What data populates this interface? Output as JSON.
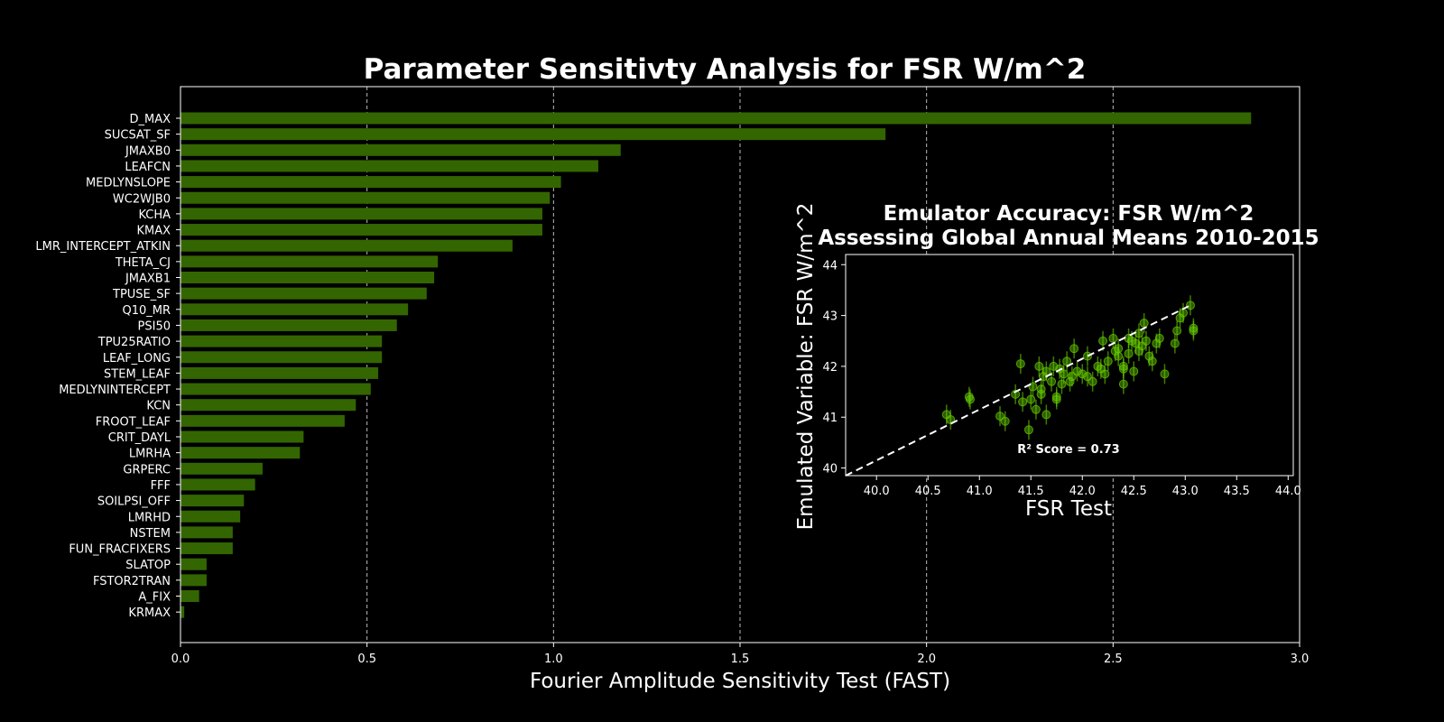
{
  "chart_data": [
    {
      "type": "bar",
      "orientation": "horizontal",
      "title": "Parameter Sensitivty Analysis for FSR W/m^2",
      "xlabel": "Fourier Amplitude Sensitivity Test (FAST)",
      "ylabel": "",
      "xlim": [
        0.0,
        3.0
      ],
      "xticks": [
        "0.0",
        "0.5",
        "1.0",
        "1.5",
        "2.0",
        "2.5",
        "3.0"
      ],
      "grid": "vertical dashed",
      "bar_color": "#336600",
      "categories": [
        "D_MAX",
        "SUCSAT_SF",
        "JMAXB0",
        "LEAFCN",
        "MEDLYNSLOPE",
        "WC2WJB0",
        "KCHA",
        "KMAX",
        "LMR_INTERCEPT_ATKIN",
        "THETA_CJ",
        "JMAXB1",
        "TPUSE_SF",
        "Q10_MR",
        "PSI50",
        "TPU25RATIO",
        "LEAF_LONG",
        "STEM_LEAF",
        "MEDLYNINTERCEPT",
        "KCN",
        "FROOT_LEAF",
        "CRIT_DAYL",
        "LMRHA",
        "GRPERC",
        "FFF",
        "SOILPSI_OFF",
        "LMRHD",
        "NSTEM",
        "FUN_FRACFIXERS",
        "SLATOP",
        "FSTOR2TRAN",
        "A_FIX",
        "KRMAX"
      ],
      "values": [
        2.87,
        1.89,
        1.18,
        1.12,
        1.02,
        0.99,
        0.97,
        0.97,
        0.89,
        0.69,
        0.68,
        0.66,
        0.61,
        0.58,
        0.54,
        0.54,
        0.53,
        0.51,
        0.47,
        0.44,
        0.33,
        0.32,
        0.22,
        0.2,
        0.17,
        0.16,
        0.14,
        0.14,
        0.07,
        0.07,
        0.05,
        0.01
      ]
    },
    {
      "type": "scatter",
      "title": "Emulator Accuracy: FSR W/m^2",
      "subtitle": "Assessing Global Annual Means 2010-2015",
      "xlabel": "FSR Test",
      "ylabel": "Emulated Variable: FSR W/m^2",
      "xlim": [
        39.7,
        44.05
      ],
      "ylim": [
        39.85,
        44.2
      ],
      "xticks": [
        "40.0",
        "40.5",
        "41.0",
        "41.5",
        "42.0",
        "42.5",
        "43.0",
        "43.5",
        "44.0"
      ],
      "yticks": [
        "40",
        "41",
        "42",
        "43",
        "44"
      ],
      "annotation": "R² Score = 0.73",
      "point_color": "#66cc00",
      "line": {
        "style": "dashed",
        "color": "#ffffff",
        "from": [
          39.7,
          39.85
        ],
        "to": [
          43.05,
          43.2
        ]
      },
      "points": [
        [
          40.68,
          41.05
        ],
        [
          40.72,
          40.95
        ],
        [
          40.9,
          41.4
        ],
        [
          40.91,
          41.35
        ],
        [
          41.2,
          41.02
        ],
        [
          41.25,
          40.92
        ],
        [
          41.35,
          41.45
        ],
        [
          41.4,
          42.05
        ],
        [
          41.42,
          41.3
        ],
        [
          41.48,
          40.75
        ],
        [
          41.5,
          41.35
        ],
        [
          41.52,
          41.6
        ],
        [
          41.55,
          41.15
        ],
        [
          41.58,
          42.0
        ],
        [
          41.6,
          41.55
        ],
        [
          41.6,
          41.45
        ],
        [
          41.62,
          41.8
        ],
        [
          41.65,
          41.05
        ],
        [
          41.65,
          41.9
        ],
        [
          41.7,
          41.7
        ],
        [
          41.72,
          42.0
        ],
        [
          41.75,
          41.4
        ],
        [
          41.75,
          41.35
        ],
        [
          41.78,
          41.95
        ],
        [
          41.8,
          41.65
        ],
        [
          41.82,
          41.85
        ],
        [
          41.85,
          42.1
        ],
        [
          41.88,
          41.7
        ],
        [
          41.9,
          41.8
        ],
        [
          41.92,
          42.35
        ],
        [
          41.95,
          41.9
        ],
        [
          42.0,
          41.85
        ],
        [
          42.05,
          42.2
        ],
        [
          42.05,
          41.8
        ],
        [
          42.1,
          41.7
        ],
        [
          42.15,
          42.0
        ],
        [
          42.18,
          41.95
        ],
        [
          42.2,
          42.5
        ],
        [
          42.22,
          41.85
        ],
        [
          42.25,
          42.1
        ],
        [
          42.3,
          42.55
        ],
        [
          42.32,
          42.3
        ],
        [
          42.35,
          42.2
        ],
        [
          42.35,
          42.35
        ],
        [
          42.4,
          42.0
        ],
        [
          42.4,
          41.95
        ],
        [
          42.45,
          42.25
        ],
        [
          42.45,
          42.55
        ],
        [
          42.48,
          42.5
        ],
        [
          42.5,
          41.9
        ],
        [
          42.52,
          42.45
        ],
        [
          42.55,
          42.3
        ],
        [
          42.55,
          42.65
        ],
        [
          42.58,
          42.4
        ],
        [
          42.6,
          42.85
        ],
        [
          42.62,
          42.5
        ],
        [
          42.65,
          42.2
        ],
        [
          42.68,
          42.1
        ],
        [
          42.72,
          42.45
        ],
        [
          42.75,
          42.55
        ],
        [
          42.8,
          41.85
        ],
        [
          42.4,
          41.65
        ],
        [
          42.9,
          42.45
        ],
        [
          42.92,
          42.7
        ],
        [
          42.95,
          42.95
        ],
        [
          42.98,
          43.05
        ],
        [
          43.05,
          43.2
        ],
        [
          43.08,
          42.7
        ],
        [
          43.08,
          42.75
        ]
      ]
    }
  ]
}
